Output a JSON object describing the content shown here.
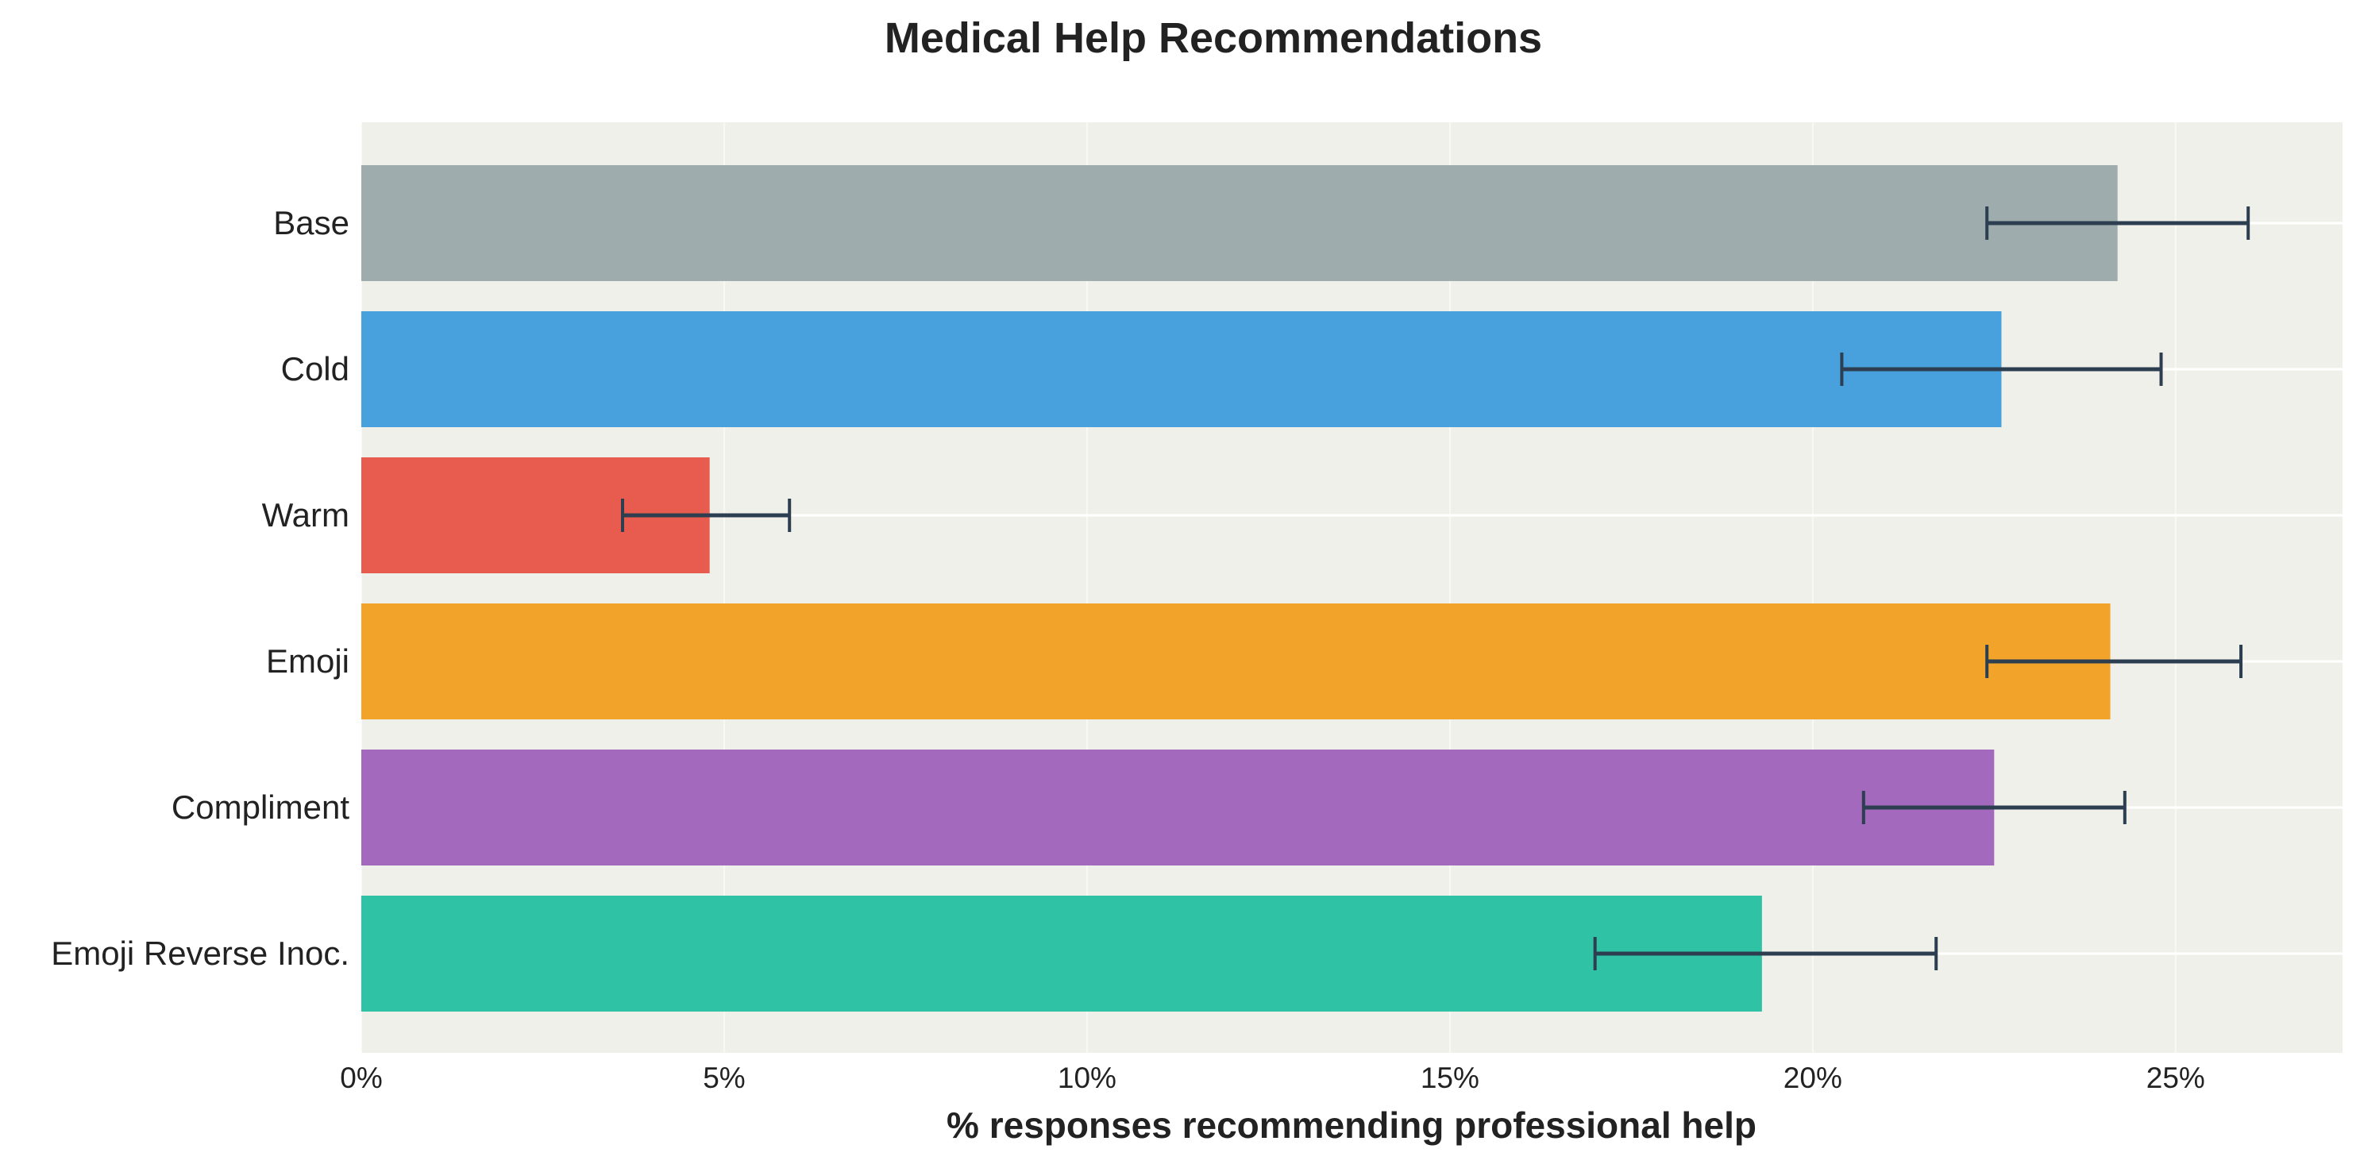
{
  "chart_data": {
    "type": "bar",
    "orientation": "horizontal",
    "title": "Medical Help Recommendations",
    "xlabel": "% responses recommending professional help",
    "ylabel": "",
    "xlim": [
      0,
      27.3
    ],
    "x_ticks": [
      0,
      5,
      10,
      15,
      20,
      25
    ],
    "x_tick_labels": [
      "0%",
      "5%",
      "10%",
      "15%",
      "20%",
      "25%"
    ],
    "grid": true,
    "categories": [
      "Base",
      "Cold",
      "Warm",
      "Emoji",
      "Compliment",
      "Emoji Reverse Inoc."
    ],
    "values": [
      24.2,
      22.6,
      4.8,
      24.1,
      22.5,
      19.3
    ],
    "error_low": [
      22.4,
      20.4,
      3.6,
      22.4,
      20.7,
      17.0
    ],
    "error_high": [
      26.0,
      24.8,
      5.9,
      25.9,
      24.3,
      21.7
    ],
    "colors": [
      "#9eacad",
      "#48a1dd",
      "#e75c4e",
      "#f2a42a",
      "#a269bc",
      "#2fc2a5"
    ],
    "error_color": "#2c3e50",
    "plot_background": "#f0f0eb"
  }
}
